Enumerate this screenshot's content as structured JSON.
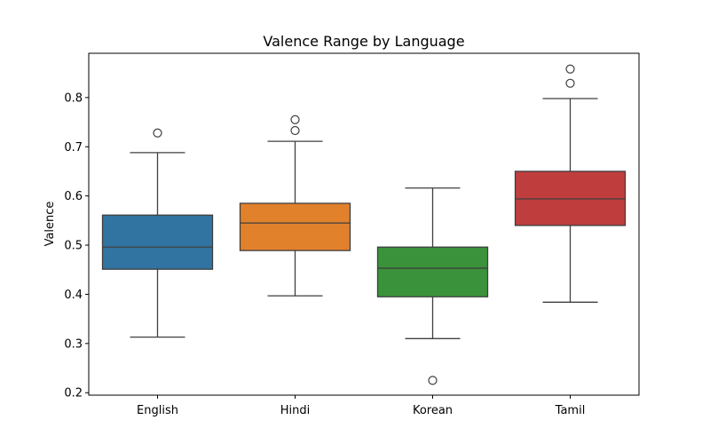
{
  "chart_data": {
    "type": "box",
    "title": "Valence Range by Language",
    "xlabel": "",
    "ylabel": "Valence",
    "ylim": [
      0.195,
      0.89
    ],
    "yticks": [
      0.2,
      0.3,
      0.4,
      0.5,
      0.6,
      0.7,
      0.8
    ],
    "ytick_labels": [
      "0.2",
      "0.3",
      "0.4",
      "0.5",
      "0.6",
      "0.7",
      "0.8"
    ],
    "categories": [
      "English",
      "Hindi",
      "Korean",
      "Tamil"
    ],
    "colors": [
      "#3274a1",
      "#e1812c",
      "#3a923a",
      "#c03d3e"
    ],
    "boxes": [
      {
        "name": "English",
        "whisker_low": 0.313,
        "q1": 0.451,
        "median": 0.496,
        "q3": 0.561,
        "whisker_high": 0.688,
        "outliers": [
          0.728
        ]
      },
      {
        "name": "Hindi",
        "whisker_low": 0.397,
        "q1": 0.489,
        "median": 0.545,
        "q3": 0.585,
        "whisker_high": 0.711,
        "outliers": [
          0.733,
          0.755
        ]
      },
      {
        "name": "Korean",
        "whisker_low": 0.31,
        "q1": 0.395,
        "median": 0.453,
        "q3": 0.496,
        "whisker_high": 0.616,
        "outliers": [
          0.225
        ]
      },
      {
        "name": "Tamil",
        "whisker_low": 0.384,
        "q1": 0.54,
        "median": 0.594,
        "q3": 0.65,
        "whisker_high": 0.798,
        "outliers": [
          0.829,
          0.858
        ]
      }
    ],
    "grid": false
  }
}
